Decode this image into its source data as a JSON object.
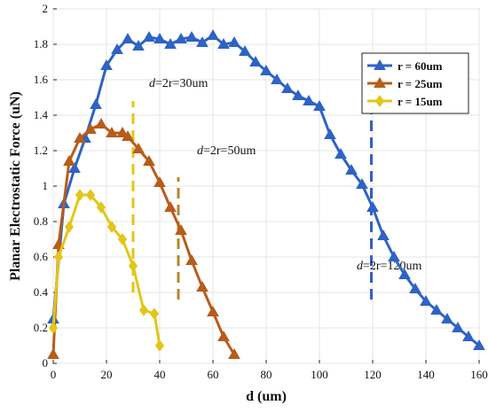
{
  "chart_data": {
    "type": "line",
    "title": "",
    "xlabel": "d (um)",
    "ylabel": "Planar Electrostatic Force (uN)",
    "xlim": [
      0,
      160
    ],
    "ylim": [
      0,
      2
    ],
    "xticks": [
      0,
      20,
      40,
      60,
      80,
      100,
      120,
      140,
      160
    ],
    "yticks": [
      0,
      0.2,
      0.4,
      0.6,
      0.8,
      1,
      1.2,
      1.4,
      1.6,
      1.8,
      2
    ],
    "xtick_labels": [
      "0",
      "20",
      "40",
      "60",
      "80",
      "100",
      "120",
      "140",
      "160"
    ],
    "ytick_labels": [
      "0",
      "0.2",
      "0.4",
      "0.6",
      "0.8",
      "1",
      "1.2",
      "1.4",
      "1.6",
      "1.8",
      "2"
    ],
    "grid": true,
    "legend_position": "top-right",
    "series": [
      {
        "name": "r = 60um",
        "color": "#2e63c6",
        "marker": "triangle",
        "x": [
          0,
          4,
          8,
          12,
          16,
          20,
          24,
          28,
          32,
          36,
          40,
          44,
          48,
          52,
          56,
          60,
          64,
          68,
          72,
          76,
          80,
          84,
          88,
          92,
          96,
          100,
          104,
          108,
          112,
          116,
          120,
          124,
          128,
          132,
          136,
          140,
          144,
          148,
          152,
          156,
          160
        ],
        "y": [
          0.25,
          0.9,
          1.1,
          1.27,
          1.46,
          1.68,
          1.77,
          1.83,
          1.79,
          1.84,
          1.83,
          1.8,
          1.83,
          1.84,
          1.81,
          1.85,
          1.8,
          1.81,
          1.76,
          1.7,
          1.65,
          1.6,
          1.55,
          1.51,
          1.48,
          1.45,
          1.29,
          1.18,
          1.09,
          1.01,
          0.88,
          0.72,
          0.6,
          0.5,
          0.42,
          0.35,
          0.3,
          0.25,
          0.2,
          0.15,
          0.1
        ]
      },
      {
        "name": "r = 25um",
        "color": "#b85c1a",
        "marker": "triangle",
        "x": [
          0,
          2,
          6,
          10,
          14,
          18,
          22,
          26,
          28,
          32,
          36,
          40,
          44,
          48,
          52,
          56,
          60,
          64,
          68
        ],
        "y": [
          0.05,
          0.67,
          1.14,
          1.27,
          1.32,
          1.35,
          1.3,
          1.3,
          1.28,
          1.21,
          1.14,
          1.02,
          0.88,
          0.75,
          0.58,
          0.43,
          0.29,
          0.15,
          0.05
        ]
      },
      {
        "name": "r = 15um",
        "color": "#e3c619",
        "marker": "diamond",
        "x": [
          0,
          2,
          6,
          10,
          14,
          18,
          22,
          26,
          30,
          34,
          38,
          40
        ],
        "y": [
          0.2,
          0.6,
          0.77,
          0.95,
          0.95,
          0.88,
          0.77,
          0.7,
          0.55,
          0.3,
          0.28,
          0.1
        ]
      }
    ],
    "annotations": [
      {
        "text_italic": "d",
        "text": "=2r=30um",
        "x": 30,
        "color": "#e3c619",
        "y_from": 0.4,
        "y_to": 1.48,
        "label_x": 36,
        "label_y": 1.56
      },
      {
        "text_italic": "d",
        "text": "=2r=50um",
        "x": 47,
        "color": "#b08a2a",
        "y_from": 0.36,
        "y_to": 1.05,
        "label_x": 54,
        "label_y": 1.18
      },
      {
        "text_italic": "d",
        "text": "=2r=120um",
        "x": 119.5,
        "color": "#2e63c6",
        "y_from": 0.36,
        "y_to": 1.44,
        "label_x": 114,
        "label_y": 0.53
      }
    ]
  }
}
